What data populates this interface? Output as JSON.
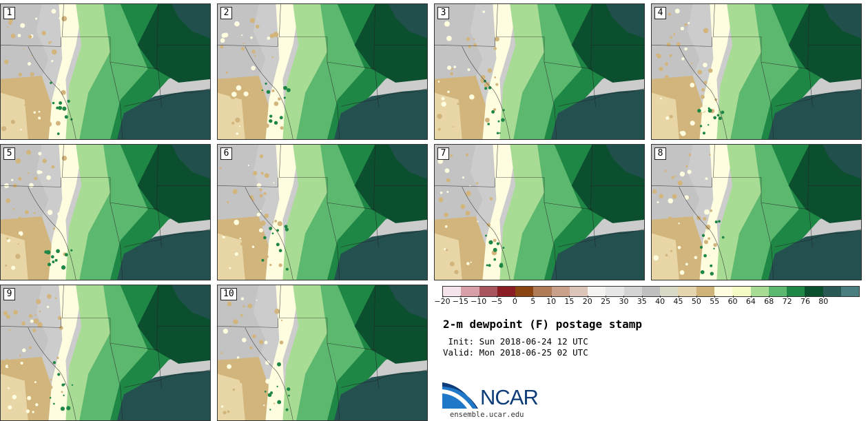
{
  "figure": {
    "title": "2-m dewpoint (F) postage stamp",
    "init": " Init: Sun 2018-06-24 12 UTC",
    "valid": "Valid: Mon 2018-06-25 02 UTC",
    "logo_text": "NCAR",
    "site": "ensemble.ucar.edu"
  },
  "panels": [
    {
      "label": "1"
    },
    {
      "label": "2"
    },
    {
      "label": "3"
    },
    {
      "label": "4"
    },
    {
      "label": "5"
    },
    {
      "label": "6"
    },
    {
      "label": "7"
    },
    {
      "label": "8"
    },
    {
      "label": "9"
    },
    {
      "label": "10"
    }
  ],
  "colorbar": {
    "ticks": [
      "−20",
      "−15",
      "−10",
      "−5",
      "0",
      "5",
      "10",
      "15",
      "20",
      "25",
      "30",
      "35",
      "40",
      "45",
      "50",
      "55",
      "60",
      "64",
      "68",
      "72",
      "76",
      "80"
    ],
    "colors": [
      "#f4e3ea",
      "#d79fa8",
      "#a95560",
      "#8b1d24",
      "#8b4513",
      "#b07b55",
      "#c9a08a",
      "#dcc4b8",
      "#f5f2f0",
      "#e6e6e6",
      "#d4d4d4",
      "#bfbfbf",
      "#d9d9c8",
      "#e4d5ae",
      "#cfb378",
      "#fffde0",
      "#f4fbc4",
      "#a8dc95",
      "#5cb86e",
      "#1f8745",
      "#0b4f2e",
      "#2b5a54",
      "#4a7e7e"
    ]
  },
  "colors": {
    "land_dry": "#cccccc",
    "tan": "#d2b57c",
    "cream": "#fffde0",
    "light_green": "#a8dc95",
    "mid_green": "#5cb86e",
    "dark_green": "#1f8745",
    "deep_green": "#0b4f2e",
    "ocean": "#245050"
  }
}
